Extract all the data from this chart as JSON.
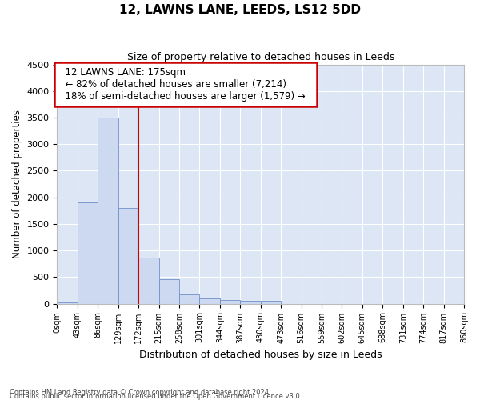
{
  "title": "12, LAWNS LANE, LEEDS, LS12 5DD",
  "subtitle": "Size of property relative to detached houses in Leeds",
  "xlabel": "Distribution of detached houses by size in Leeds",
  "ylabel": "Number of detached properties",
  "footnote1": "Contains HM Land Registry data © Crown copyright and database right 2024.",
  "footnote2": "Contains public sector information licensed under the Open Government Licence v3.0.",
  "bar_edges": [
    0,
    43,
    86,
    129,
    172,
    215,
    258,
    301,
    344,
    387,
    430,
    473,
    516,
    559,
    602,
    645,
    688,
    731,
    774,
    817,
    860
  ],
  "bar_heights": [
    30,
    1900,
    3500,
    1800,
    860,
    460,
    175,
    95,
    65,
    55,
    55,
    0,
    0,
    0,
    0,
    0,
    0,
    0,
    0,
    0
  ],
  "bar_color": "#ccd9f0",
  "bar_edge_color": "#7090c8",
  "vline_x": 172,
  "vline_color": "#cc0000",
  "ylim": [
    0,
    4500
  ],
  "yticks": [
    0,
    500,
    1000,
    1500,
    2000,
    2500,
    3000,
    3500,
    4000,
    4500
  ],
  "annotation_text1": "12 LAWNS LANE: 175sqm",
  "annotation_text2": "← 82% of detached houses are smaller (7,214)",
  "annotation_text3": "18% of semi-detached houses are larger (1,579) →",
  "annotation_box_color": "#cc0000",
  "bg_color": "#ffffff",
  "plot_bg_color": "#dce6f5"
}
